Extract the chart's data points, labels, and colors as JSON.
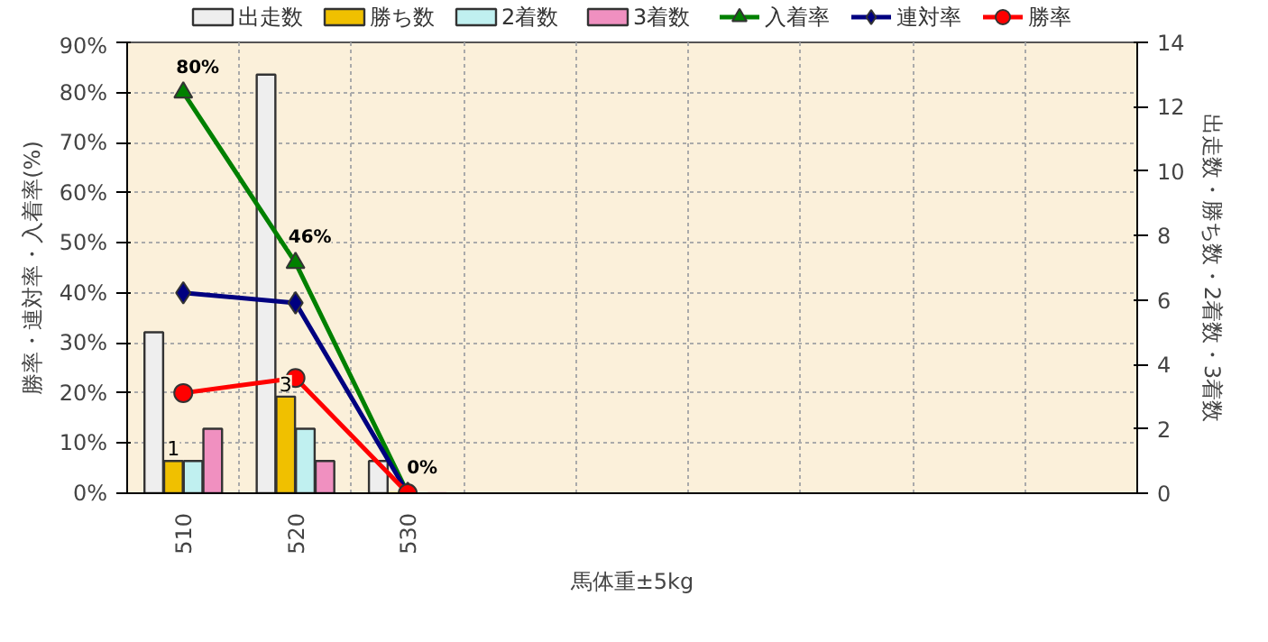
{
  "chart_data": {
    "type": "bar",
    "xlabel": "馬体重±5kg",
    "ylabel": "勝率・連対率・入着率(%)",
    "y2label": "出走数・勝ち数・2着数・3着数",
    "categories": [
      "510",
      "520",
      "530",
      null,
      null,
      null,
      null,
      null,
      null
    ],
    "series": [
      {
        "name": "出走数",
        "axis": "y2",
        "color": "#eeeeee",
        "values": [
          5,
          13,
          1,
          null,
          null,
          null,
          null,
          null,
          null
        ]
      },
      {
        "name": "勝ち数",
        "axis": "y2",
        "color": "#f0c000",
        "values": [
          1,
          3,
          0,
          null,
          null,
          null,
          null,
          null,
          null
        ],
        "value_labels": [
          "1",
          "3",
          null,
          null,
          null,
          null,
          null,
          null,
          null
        ]
      },
      {
        "name": "2着数",
        "axis": "y2",
        "color": "#c0f0f0",
        "values": [
          1,
          2,
          0,
          null,
          null,
          null,
          null,
          null,
          null
        ]
      },
      {
        "name": "3着数",
        "axis": "y2",
        "color": "#f090c0",
        "values": [
          2,
          1,
          0,
          null,
          null,
          null,
          null,
          null,
          null
        ]
      },
      {
        "name": "入着率",
        "type": "line",
        "marker": "triangle",
        "color": "#008000",
        "values": [
          80,
          46,
          0,
          null,
          null,
          null,
          null,
          null,
          null
        ],
        "value_labels": [
          "80%",
          "46%",
          "0%",
          null,
          null,
          null,
          null,
          null,
          null
        ]
      },
      {
        "name": "連対率",
        "type": "line",
        "marker": "diamond",
        "color": "#000080",
        "values": [
          40,
          38,
          0,
          null,
          null,
          null,
          null,
          null,
          null
        ]
      },
      {
        "name": "勝率",
        "type": "line",
        "marker": "circle",
        "color": "#ff0000",
        "values": [
          20,
          23,
          0,
          null,
          null,
          null,
          null,
          null,
          null
        ]
      }
    ],
    "ylim": [
      0,
      90
    ],
    "yticks": [
      {
        "value": 0,
        "label": "0%"
      },
      {
        "value": 10,
        "label": "10%"
      },
      {
        "value": 20,
        "label": "20%"
      },
      {
        "value": 30,
        "label": "30%"
      },
      {
        "value": 40,
        "label": "40%"
      },
      {
        "value": 50,
        "label": "50%"
      },
      {
        "value": 60,
        "label": "60%"
      },
      {
        "value": 70,
        "label": "70%"
      },
      {
        "value": 80,
        "label": "80%"
      },
      {
        "value": 90,
        "label": "90%"
      }
    ],
    "y2lim": [
      0,
      14
    ],
    "y2ticks": [
      0,
      2,
      4,
      6,
      8,
      10,
      12,
      14
    ],
    "grid": true,
    "legend": "top"
  }
}
